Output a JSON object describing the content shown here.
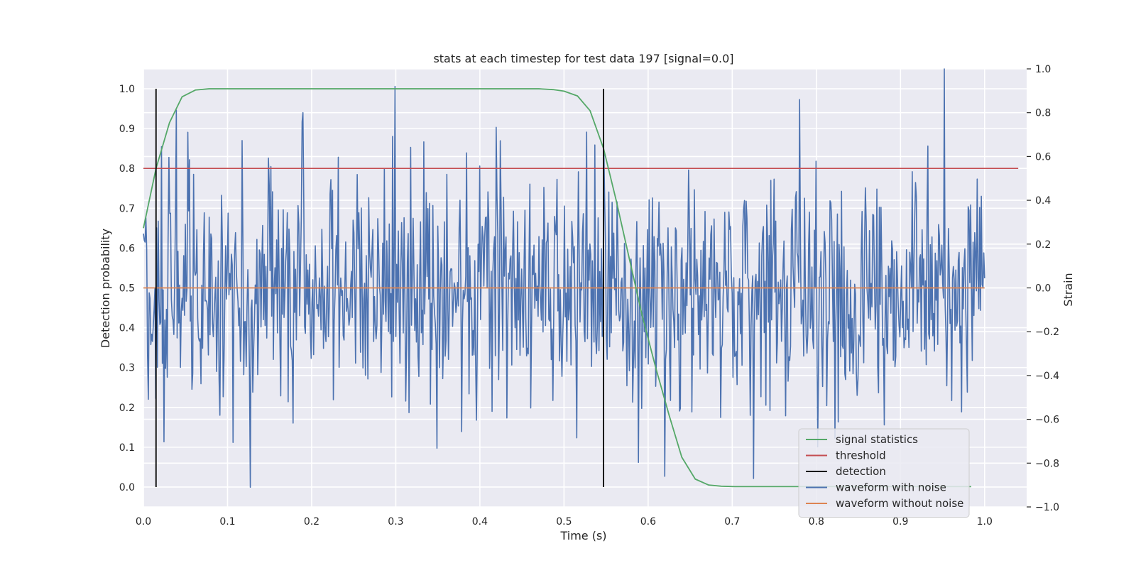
{
  "chart_data": {
    "type": "line",
    "title": "stats at each timestep for test data 197 [signal=0.0]",
    "xlabel": "Time (s)",
    "ylabel": "Detection probability",
    "ylabel_right": "Strain",
    "xlim": [
      0.0,
      1.05
    ],
    "ylim": [
      -0.05,
      1.05
    ],
    "ylim_right": [
      -1.0,
      1.0
    ],
    "xticks": [
      "0.0",
      "0.1",
      "0.2",
      "0.3",
      "0.4",
      "0.5",
      "0.6",
      "0.7",
      "0.8",
      "0.9",
      "1.0"
    ],
    "yticks": [
      "0.0",
      "0.1",
      "0.2",
      "0.3",
      "0.4",
      "0.5",
      "0.6",
      "0.7",
      "0.8",
      "0.9",
      "1.0"
    ],
    "yticks_right": [
      "−1.0",
      "−0.8",
      "−0.6",
      "−0.4",
      "−0.2",
      "0.0",
      "0.2",
      "0.4",
      "0.6",
      "0.8",
      "1.0"
    ],
    "grid": true,
    "legend_position": "lower right",
    "series": [
      {
        "name": "signal statistics",
        "axis": "left",
        "color": "#55a868",
        "x": [
          0.0,
          0.015,
          0.031,
          0.046,
          0.062,
          0.078,
          0.1,
          0.2,
          0.3,
          0.4,
          0.47,
          0.487,
          0.5,
          0.516,
          0.531,
          0.547,
          0.562,
          0.578,
          0.593,
          0.609,
          0.625,
          0.64,
          0.656,
          0.672,
          0.687,
          0.703,
          0.75,
          0.8,
          0.9,
          0.984
        ],
        "y": [
          0.65,
          0.8,
          0.915,
          0.98,
          0.997,
          1.0,
          1.0,
          1.0,
          1.0,
          1.0,
          1.0,
          0.998,
          0.994,
          0.982,
          0.945,
          0.85,
          0.72,
          0.57,
          0.43,
          0.3,
          0.18,
          0.075,
          0.02,
          0.005,
          0.002,
          0.001,
          0.001,
          0.001,
          0.001,
          0.001
        ]
      },
      {
        "name": "threshold",
        "axis": "left",
        "color": "#c44e52",
        "x": [
          0.0,
          1.04
        ],
        "y": [
          0.8,
          0.8
        ]
      },
      {
        "name": "waveform with noise",
        "axis": "right",
        "color": "#4c72b0",
        "x_start": 0.0,
        "x_end": 1.0,
        "n_points": 1024,
        "seed": 197,
        "std": 0.27,
        "peaks": [
          [
            0.952,
            1.0
          ],
          [
            0.127,
            -0.91
          ],
          [
            0.725,
            -0.87
          ],
          [
            0.299,
            0.92
          ],
          [
            0.78,
            0.86
          ],
          [
            0.19,
            0.8
          ],
          [
            0.62,
            -0.86
          ]
        ]
      },
      {
        "name": "waveform without noise",
        "axis": "right",
        "color": "#dd8452",
        "x": [
          0.0,
          1.0
        ],
        "y": [
          0.0,
          0.0
        ]
      },
      {
        "name": "detection",
        "axis": "left",
        "color": "#000000",
        "vlines": [
          0.015,
          0.547
        ],
        "ymin": 0.0,
        "ymax": 1.0
      }
    ],
    "legend_order": [
      "signal statistics",
      "threshold",
      "detection",
      "waveform with noise",
      "waveform without noise"
    ]
  },
  "colors": {
    "plot_background": "#eaeaf2",
    "grid": "#ffffff",
    "text": "#262626"
  }
}
